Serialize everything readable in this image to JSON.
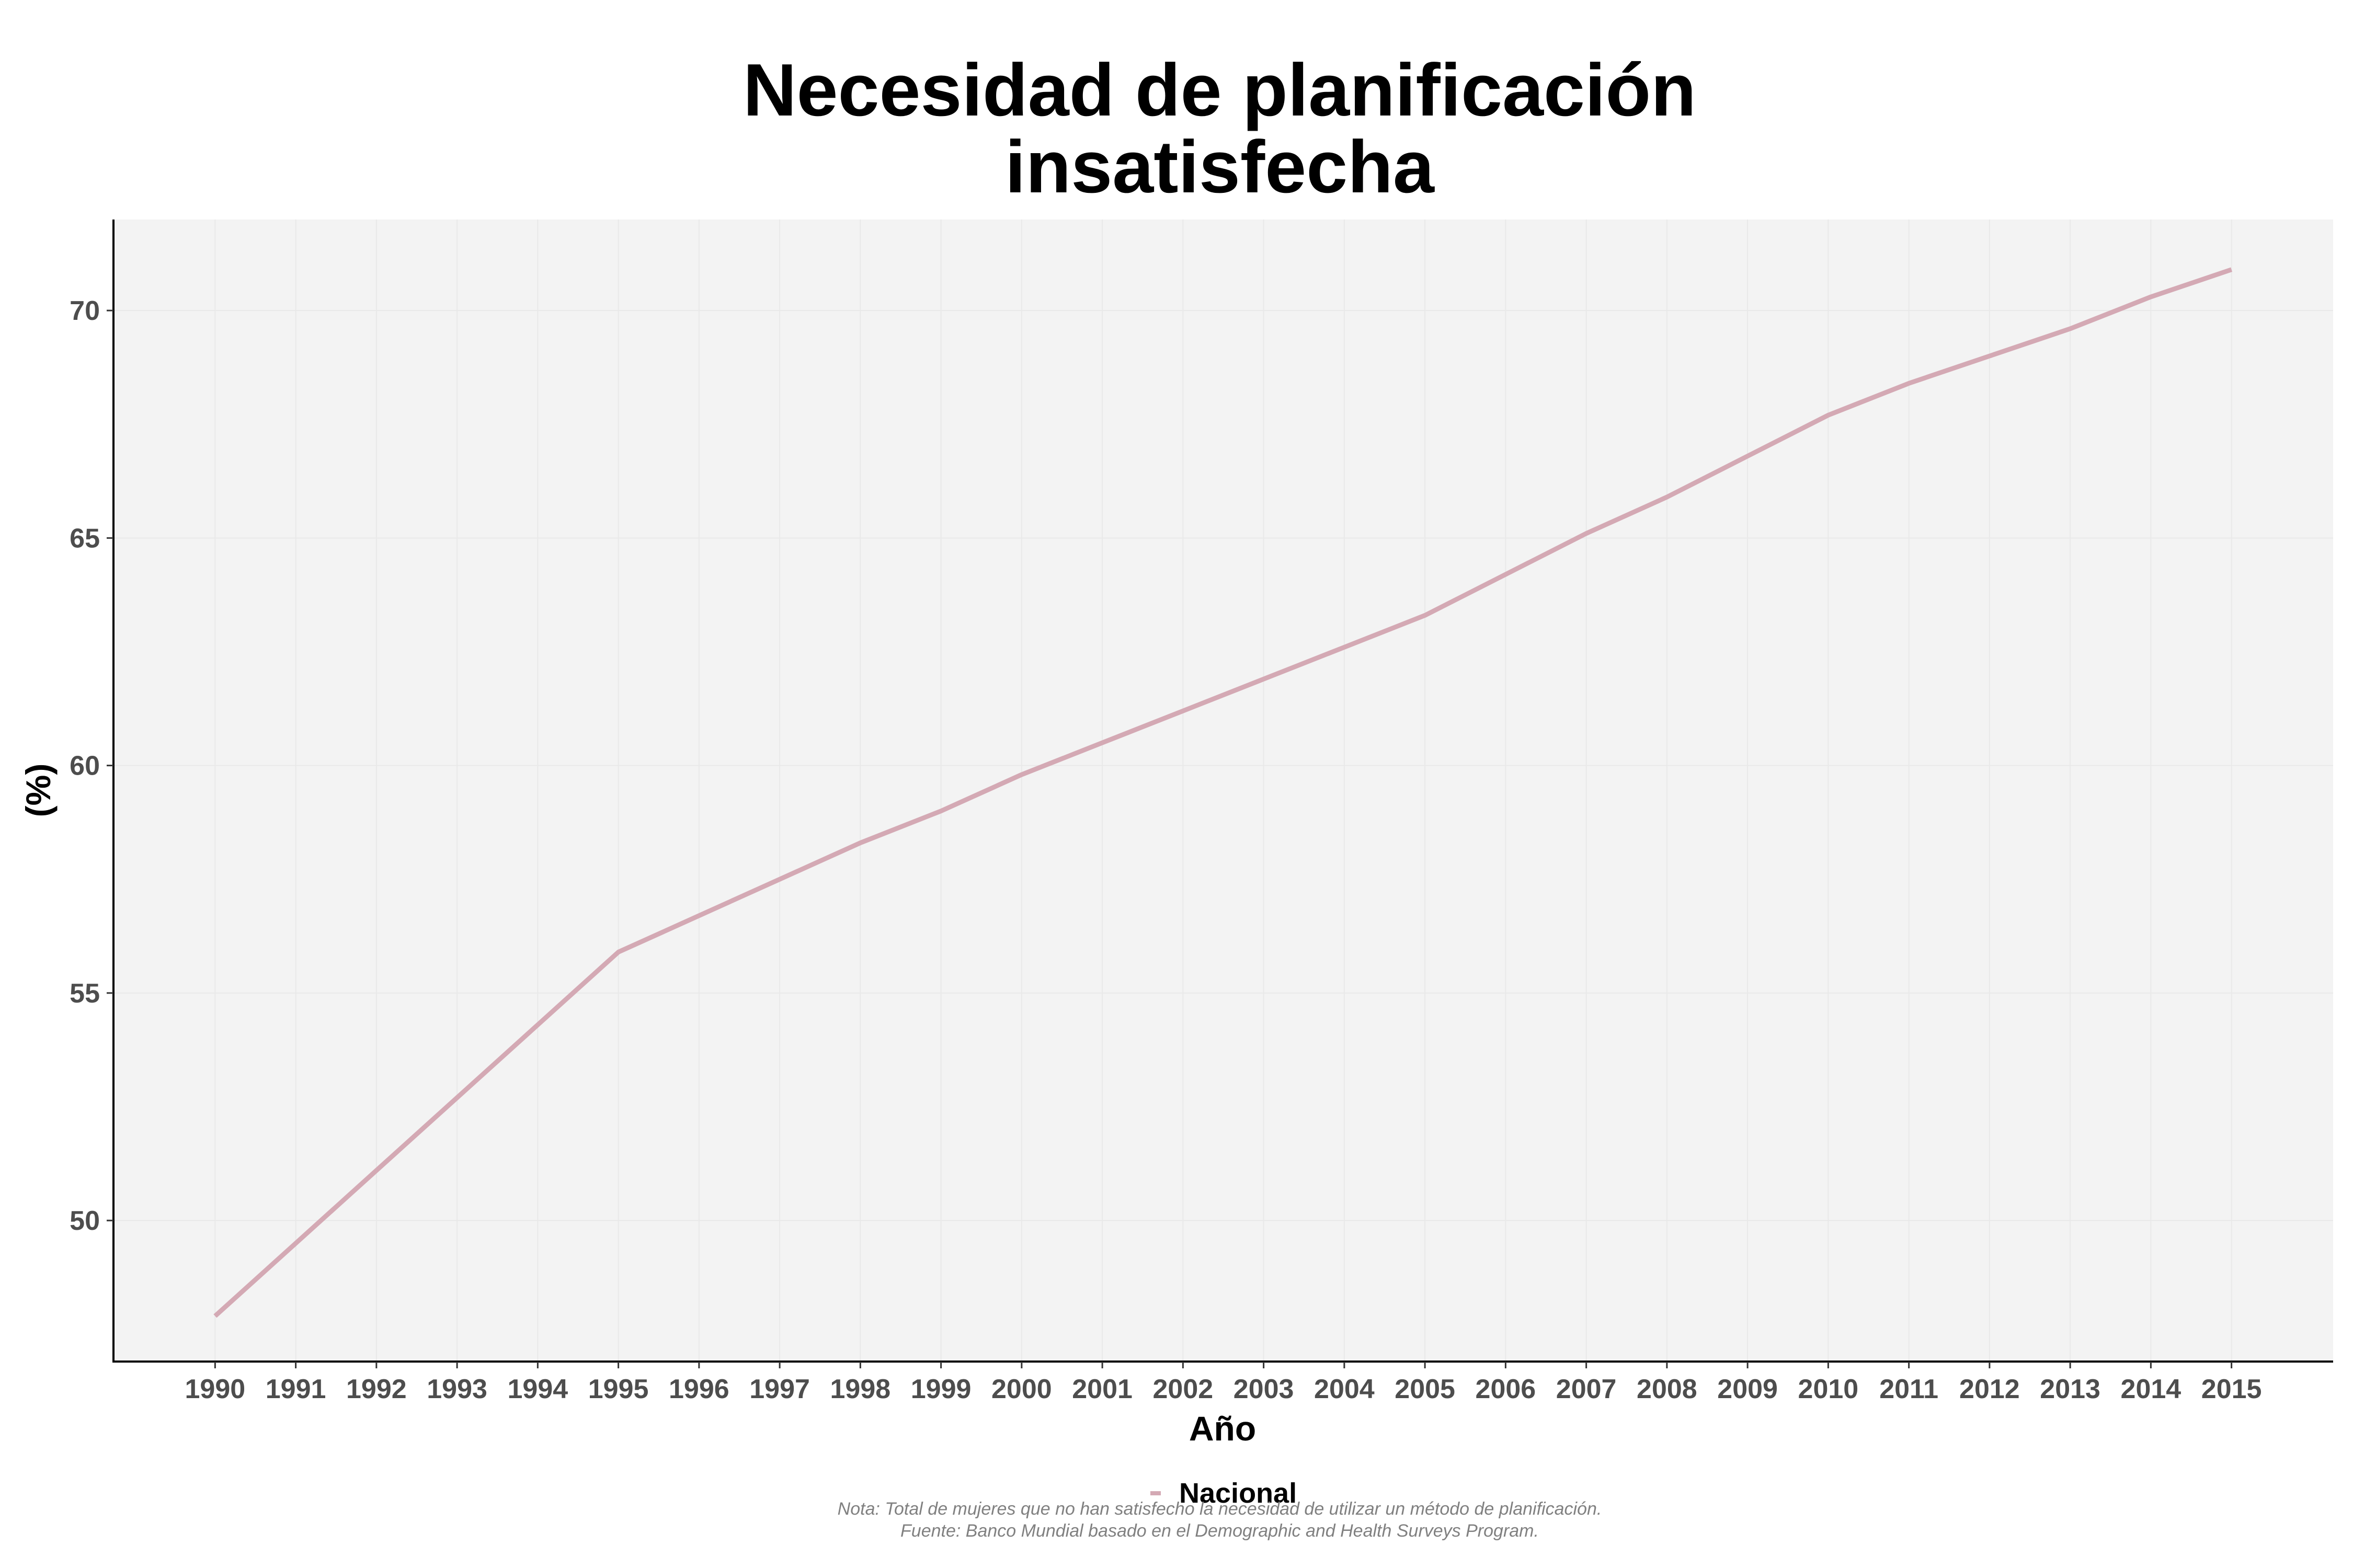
{
  "title_lines": [
    "Necesidad de planificación",
    "insatisfecha"
  ],
  "chart_data": {
    "type": "line",
    "title": "Necesidad de planificación insatisfecha",
    "xlabel": "Año",
    "ylabel": "(%)",
    "x": [
      1990,
      1991,
      1992,
      1993,
      1994,
      1995,
      1996,
      1997,
      1998,
      1999,
      2000,
      2001,
      2002,
      2003,
      2004,
      2005,
      2006,
      2007,
      2008,
      2009,
      2010,
      2011,
      2012,
      2013,
      2014,
      2015
    ],
    "x_tick_labels": [
      "1990",
      "1991",
      "1992",
      "1993",
      "1994",
      "1995",
      "1996",
      "1997",
      "1998",
      "1999",
      "2000",
      "2001",
      "2002",
      "2003",
      "2004",
      "2005",
      "2006",
      "2007",
      "2008",
      "2009",
      "2010",
      "2011",
      "2012",
      "2013",
      "2014",
      "2015"
    ],
    "y_ticks": [
      50,
      55,
      60,
      65,
      70
    ],
    "y_tick_labels": [
      "50",
      "55",
      "60",
      "65",
      "70"
    ],
    "ylim": [
      46.9,
      72.0
    ],
    "grid": true,
    "legend_position": "bottom",
    "series": [
      {
        "name": "Nacional",
        "color": "#d4a9b4",
        "values": [
          47.9,
          49.5,
          51.1,
          52.7,
          54.3,
          55.9,
          56.7,
          57.5,
          58.3,
          59.0,
          59.8,
          60.5,
          61.2,
          61.9,
          62.6,
          63.3,
          64.2,
          65.1,
          65.9,
          66.8,
          67.7,
          68.4,
          69.0,
          69.6,
          70.3,
          70.9
        ]
      }
    ]
  },
  "notes": [
    "Nota: Total de mujeres que no han satisfecho la necesidad de utilizar un método de planificación.",
    "Fuente: Banco Mundial basado en el Demographic and Health Surveys Program."
  ]
}
